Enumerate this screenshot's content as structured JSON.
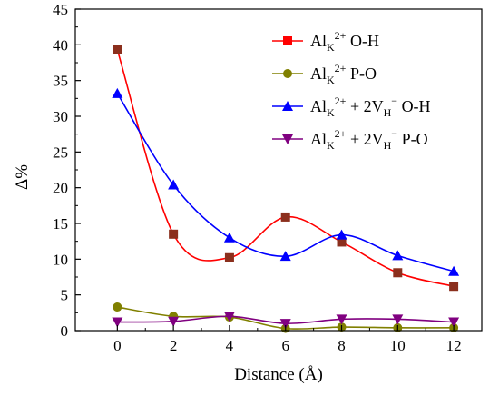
{
  "chart_data": {
    "type": "line",
    "xlabel": "Distance (Å)",
    "ylabel": "Δ%",
    "xlim": [
      -1.5,
      13
    ],
    "ylim": [
      0,
      45
    ],
    "xticks": [
      0,
      2,
      4,
      6,
      8,
      10,
      12
    ],
    "yticks": [
      0,
      5,
      10,
      15,
      20,
      25,
      30,
      35,
      40,
      45
    ],
    "x": [
      0,
      2,
      4,
      6,
      8,
      10,
      12
    ],
    "legend_position": "top-right",
    "grid": false,
    "series": [
      {
        "name_parts": {
          "base": "Al",
          "sub": "K",
          "sup": "2+",
          "rest": " O-H"
        },
        "values": [
          39.3,
          13.5,
          10.2,
          15.9,
          12.4,
          8.1,
          6.2
        ],
        "line_color": "#ff0000",
        "marker_color": "#8b2f1d",
        "legend_marker_color": "#ff0000",
        "marker": "square"
      },
      {
        "name_parts": {
          "base": "Al",
          "sub": "K",
          "sup": "2+",
          "rest": " P-O"
        },
        "values": [
          3.3,
          2.0,
          1.9,
          0.3,
          0.5,
          0.4,
          0.4
        ],
        "line_color": "#808000",
        "marker_color": "#808000",
        "legend_marker_color": "#808000",
        "marker": "circle"
      },
      {
        "name_parts": {
          "base": "Al",
          "sub": "K",
          "sup": "2+",
          "rest": " + 2V",
          "sub2": "H",
          "sup2": "−",
          "rest2": " O-H"
        },
        "values": [
          33.2,
          20.4,
          13.0,
          10.4,
          13.4,
          10.5,
          8.3
        ],
        "line_color": "#0000ff",
        "marker_color": "#0000ff",
        "legend_marker_color": "#0000ff",
        "marker": "triangle-up"
      },
      {
        "name_parts": {
          "base": "Al",
          "sub": "K",
          "sup": "2+",
          "rest": " + 2V",
          "sub2": "H",
          "sup2": "−",
          "rest2": " P-O"
        },
        "values": [
          1.2,
          1.3,
          2.0,
          1.0,
          1.6,
          1.6,
          1.2
        ],
        "line_color": "#800080",
        "marker_color": "#800080",
        "legend_marker_color": "#800080",
        "marker": "triangle-down"
      }
    ]
  }
}
